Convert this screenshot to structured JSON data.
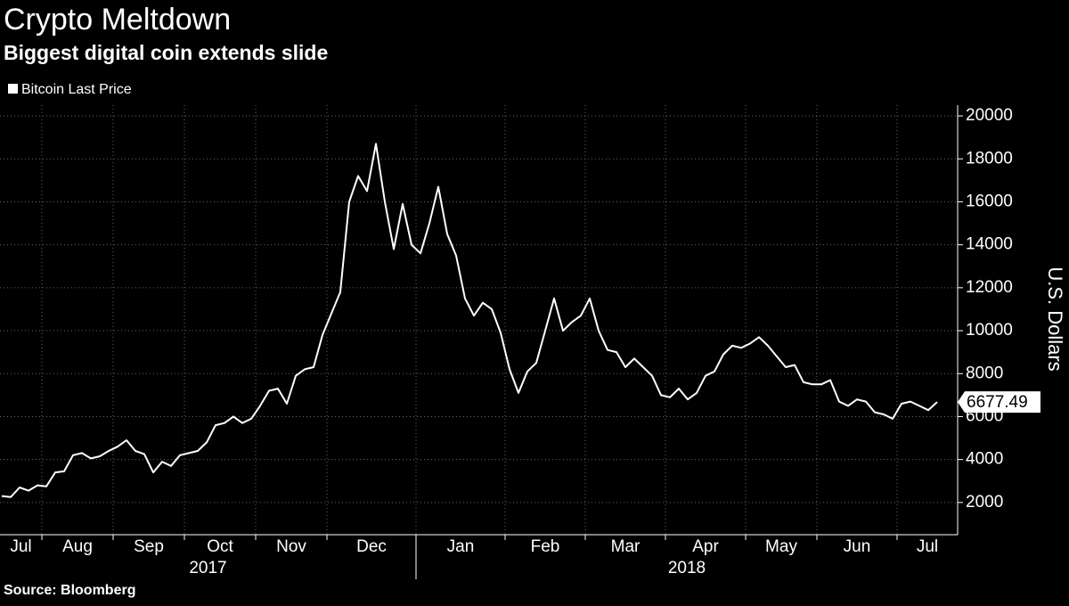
{
  "chart_data": {
    "type": "line",
    "title": "Crypto Meltdown",
    "subtitle": "Biggest digital coin extends slide",
    "source": "Source: Bloomberg",
    "y_label": "U.S. Dollars",
    "categories": [
      "Jul",
      null,
      null,
      null,
      null,
      "Aug",
      null,
      null,
      null,
      null,
      null,
      null,
      null,
      "Sep",
      null,
      null,
      null,
      null,
      null,
      null,
      null,
      "Oct",
      null,
      null,
      null,
      null,
      null,
      null,
      null,
      "Nov",
      null,
      null,
      null,
      null,
      null,
      null,
      null,
      "Dec",
      null,
      null,
      null,
      null,
      null,
      null,
      null,
      null,
      null,
      "Jan",
      null,
      null,
      null,
      null,
      null,
      null,
      null,
      null,
      null,
      "Feb",
      null,
      null,
      null,
      null,
      null,
      null,
      null,
      null,
      "Mar",
      null,
      null,
      null,
      null,
      null,
      null,
      null,
      null,
      "Apr",
      null,
      null,
      null,
      null,
      null,
      null,
      null,
      null,
      "May",
      null,
      null,
      null,
      null,
      null,
      null,
      null,
      "Jun",
      null,
      null,
      null,
      null,
      null,
      null,
      null,
      null,
      "Jul",
      null,
      null,
      null,
      null
    ],
    "years": [
      {
        "label": "2017",
        "start_category": 0
      },
      {
        "label": "2018",
        "start_category": 47
      }
    ],
    "series": [
      {
        "name": "Bitcoin Last Price",
        "color": "#ffffff",
        "values": [
          2300,
          2250,
          2700,
          2550,
          2800,
          2750,
          3400,
          3450,
          4200,
          4300,
          4050,
          4150,
          4400,
          4600,
          4900,
          4400,
          4250,
          3400,
          3900,
          3700,
          4200,
          4300,
          4400,
          4800,
          5600,
          5700,
          6000,
          5700,
          5900,
          6500,
          7200,
          7300,
          6600,
          7900,
          8200,
          8300,
          9800,
          10800,
          11800,
          16000,
          17200,
          16500,
          18700,
          16000,
          13800,
          15900,
          14000,
          13600,
          15000,
          16700,
          14500,
          13500,
          11500,
          10700,
          11300,
          11000,
          9900,
          8200,
          7100,
          8100,
          8500,
          10000,
          11500,
          10000,
          10400,
          10700,
          11500,
          10000,
          9100,
          9000,
          8300,
          8700,
          8300,
          7900,
          7000,
          6900,
          7300,
          6800,
          7100,
          7900,
          8100,
          8900,
          9300,
          9200,
          9400,
          9700,
          9300,
          8800,
          8300,
          8400,
          7600,
          7500,
          7500,
          7700,
          6700,
          6500,
          6800,
          6700,
          6200,
          6100,
          5900,
          6600,
          6700,
          6500,
          6300,
          6677.49
        ]
      }
    ],
    "ylim": [
      500,
      20500
    ],
    "yticks": [
      2000,
      4000,
      6000,
      8000,
      10000,
      12000,
      14000,
      16000,
      18000,
      20000
    ],
    "grid": true
  }
}
